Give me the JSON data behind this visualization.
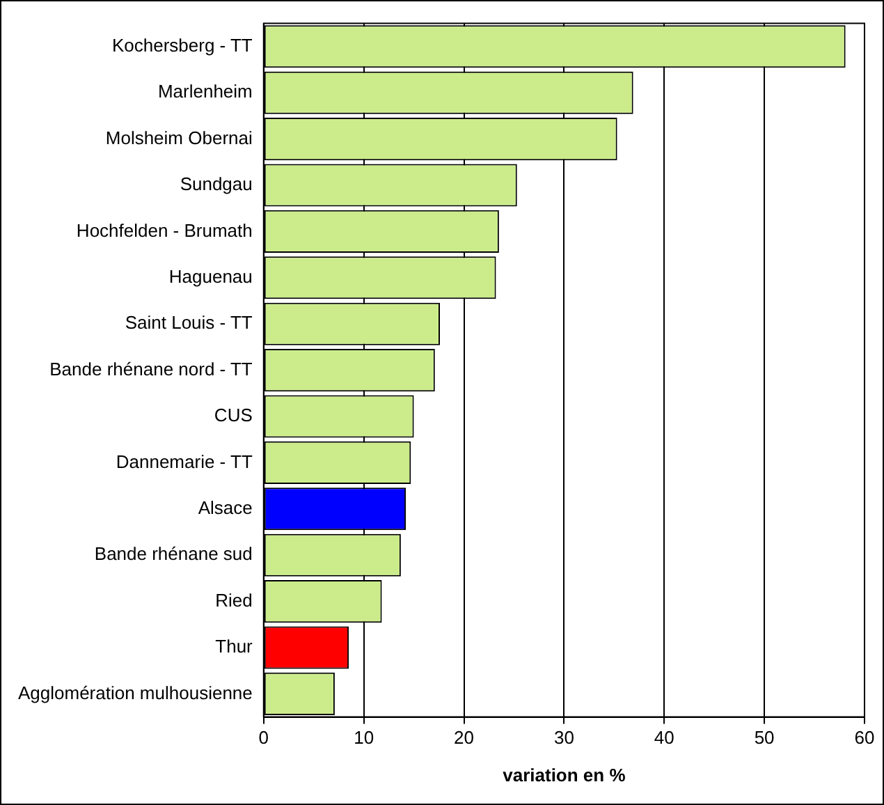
{
  "chart_data": {
    "type": "bar",
    "orientation": "horizontal",
    "xlabel": "variation en %",
    "categories": [
      "Kochersberg - TT",
      "Marlenheim",
      "Molsheim Obernai",
      "Sundgau",
      "Hochfelden - Brumath",
      "Haguenau",
      "Saint Louis - TT",
      "Bande rhénane nord - TT",
      "CUS",
      "Dannemarie - TT",
      "Alsace",
      "Bande rhénane sud",
      "Ried",
      "Thur",
      "Agglomération mulhousienne"
    ],
    "values": [
      58.1,
      36.9,
      35.3,
      25.3,
      23.5,
      23.2,
      17.6,
      17.1,
      15,
      14.7,
      14.2,
      13.7,
      11.8,
      8.5,
      7.1
    ],
    "colors": [
      "#ccec8c",
      "#ccec8c",
      "#ccec8c",
      "#ccec8c",
      "#ccec8c",
      "#ccec8c",
      "#ccec8c",
      "#ccec8c",
      "#ccec8c",
      "#ccec8c",
      "#0000ff",
      "#ccec8c",
      "#ccec8c",
      "#ff0000",
      "#ccec8c"
    ],
    "xlim": [
      0,
      60
    ],
    "xticks": [
      0,
      10,
      20,
      30,
      40,
      50,
      60
    ],
    "grid": "x",
    "legend": false
  }
}
